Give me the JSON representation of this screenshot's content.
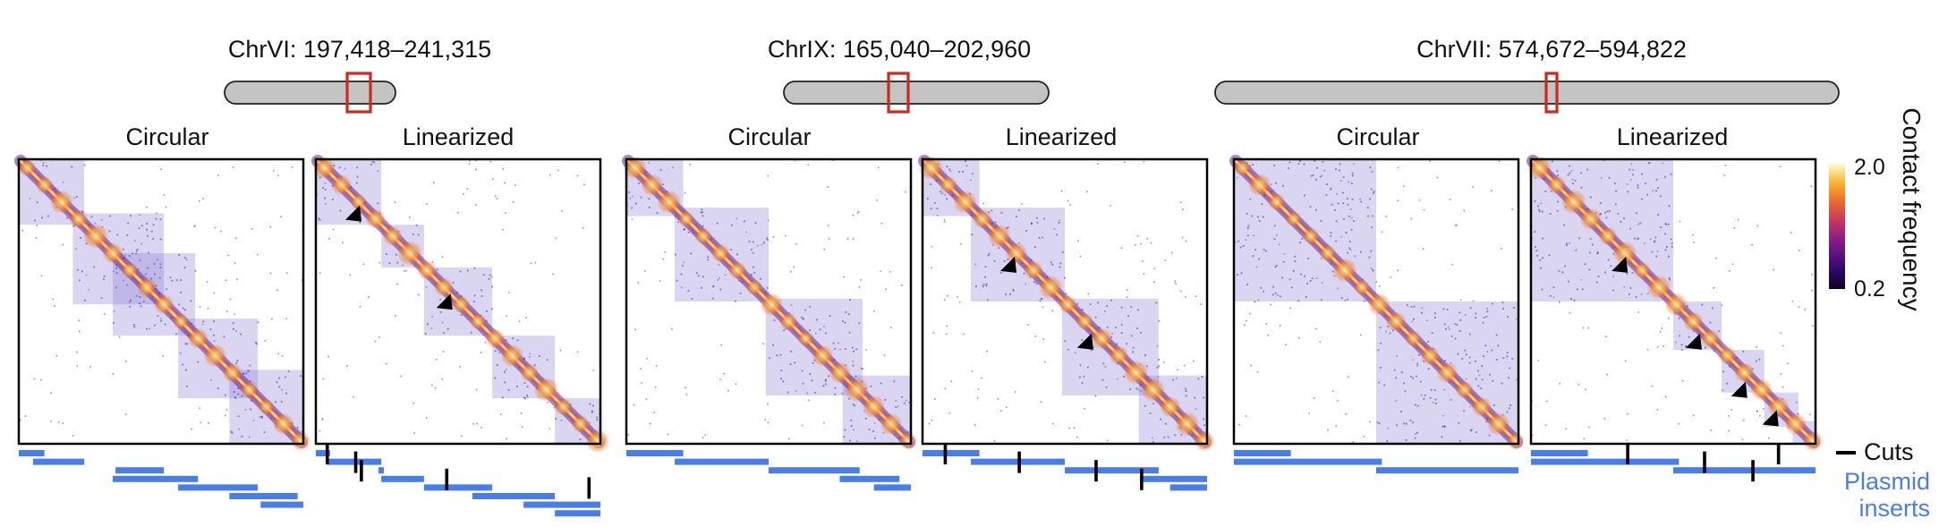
{
  "groups": [
    {
      "region_label": "ChrVI: 197,418–241,315",
      "left_title": "Circular",
      "right_title": "Linearized",
      "circular_blocks": [
        [
          0,
          0.23
        ],
        [
          0.19,
          0.51
        ],
        [
          0.33,
          0.62
        ],
        [
          0.56,
          0.84
        ],
        [
          0.74,
          1.0
        ]
      ],
      "linear_blocks": [
        [
          0,
          0.23
        ],
        [
          0.23,
          0.38
        ],
        [
          0.38,
          0.62
        ],
        [
          0.62,
          0.84
        ],
        [
          0.84,
          1.0
        ]
      ],
      "arrowheads": [
        [
          0.11,
          0.2
        ],
        [
          0.43,
          0.51
        ]
      ],
      "circular_inserts": [
        [
          0,
          0.09
        ],
        [
          0.05,
          0.23
        ],
        [
          0.34,
          0.51
        ],
        [
          0.33,
          0.63
        ],
        [
          0.56,
          0.84
        ],
        [
          0.74,
          0.98
        ],
        [
          0.85,
          1.0
        ]
      ],
      "linear_inserts": [
        [
          0,
          0.05
        ],
        [
          0.04,
          0.23
        ],
        [
          0.22,
          0.23
        ],
        [
          0.23,
          0.38
        ],
        [
          0.38,
          0.62
        ],
        [
          0.55,
          0.84
        ],
        [
          0.73,
          1.0
        ],
        [
          0.84,
          1.0
        ]
      ],
      "cuts": [
        0.04,
        0.14,
        0.16,
        0.46,
        0.96
      ]
    },
    {
      "region_label": "ChrIX: 165,040–202,960",
      "left_title": "Circular",
      "right_title": "Linearized",
      "circular_blocks": [
        [
          0,
          0.2
        ],
        [
          0.17,
          0.5
        ],
        [
          0.49,
          0.83
        ],
        [
          0.76,
          1.0
        ]
      ],
      "linear_blocks": [
        [
          0,
          0.2
        ],
        [
          0.17,
          0.5
        ],
        [
          0.49,
          0.83
        ],
        [
          0.76,
          1.0
        ]
      ],
      "arrowheads": [
        [
          0.28,
          0.38
        ],
        [
          0.55,
          0.65
        ]
      ],
      "circular_inserts": [
        [
          0,
          0.2
        ],
        [
          0.17,
          0.5
        ],
        [
          0.5,
          0.82
        ],
        [
          0.75,
          0.96
        ],
        [
          0.87,
          1.0
        ]
      ],
      "linear_inserts": [
        [
          0,
          0.2
        ],
        [
          0.17,
          0.5
        ],
        [
          0.5,
          0.83
        ],
        [
          0.77,
          1.0
        ],
        [
          0.87,
          1.0
        ]
      ],
      "cuts": [
        0.08,
        0.34,
        0.61,
        0.77
      ]
    },
    {
      "region_label": "ChrVII: 574,672–594,822",
      "left_title": "Circular",
      "right_title": "Linearized",
      "circular_blocks": [
        [
          0,
          0.5
        ],
        [
          0.5,
          1.0
        ]
      ],
      "linear_blocks": [
        [
          0,
          0.5
        ],
        [
          0.5,
          0.67
        ],
        [
          0.67,
          0.82
        ],
        [
          0.82,
          0.94
        ],
        [
          0.92,
          1.0
        ]
      ],
      "arrowheads": [
        [
          0.29,
          0.38
        ],
        [
          0.55,
          0.65
        ],
        [
          0.71,
          0.82
        ],
        [
          0.82,
          0.92
        ]
      ],
      "circular_inserts": [
        [
          0,
          0.2
        ],
        [
          0,
          0.52
        ],
        [
          0.5,
          1.0
        ]
      ],
      "linear_inserts": [
        [
          0,
          0.2
        ],
        [
          0,
          0.52
        ],
        [
          0.5,
          1.0
        ]
      ],
      "cuts": [
        0.34,
        0.61,
        0.78,
        0.87
      ]
    }
  ],
  "colorbar": {
    "max_label": "2.0",
    "min_label": "0.2",
    "title": "Contact frequency"
  },
  "legend": {
    "cuts": "Cuts",
    "plasmid_line1": "Plasmid",
    "plasmid_line2": "inserts"
  },
  "colors": {
    "insert": "#4a7de6",
    "region_box": "#cc2a1e",
    "chromosome": "#c4c4c4"
  }
}
